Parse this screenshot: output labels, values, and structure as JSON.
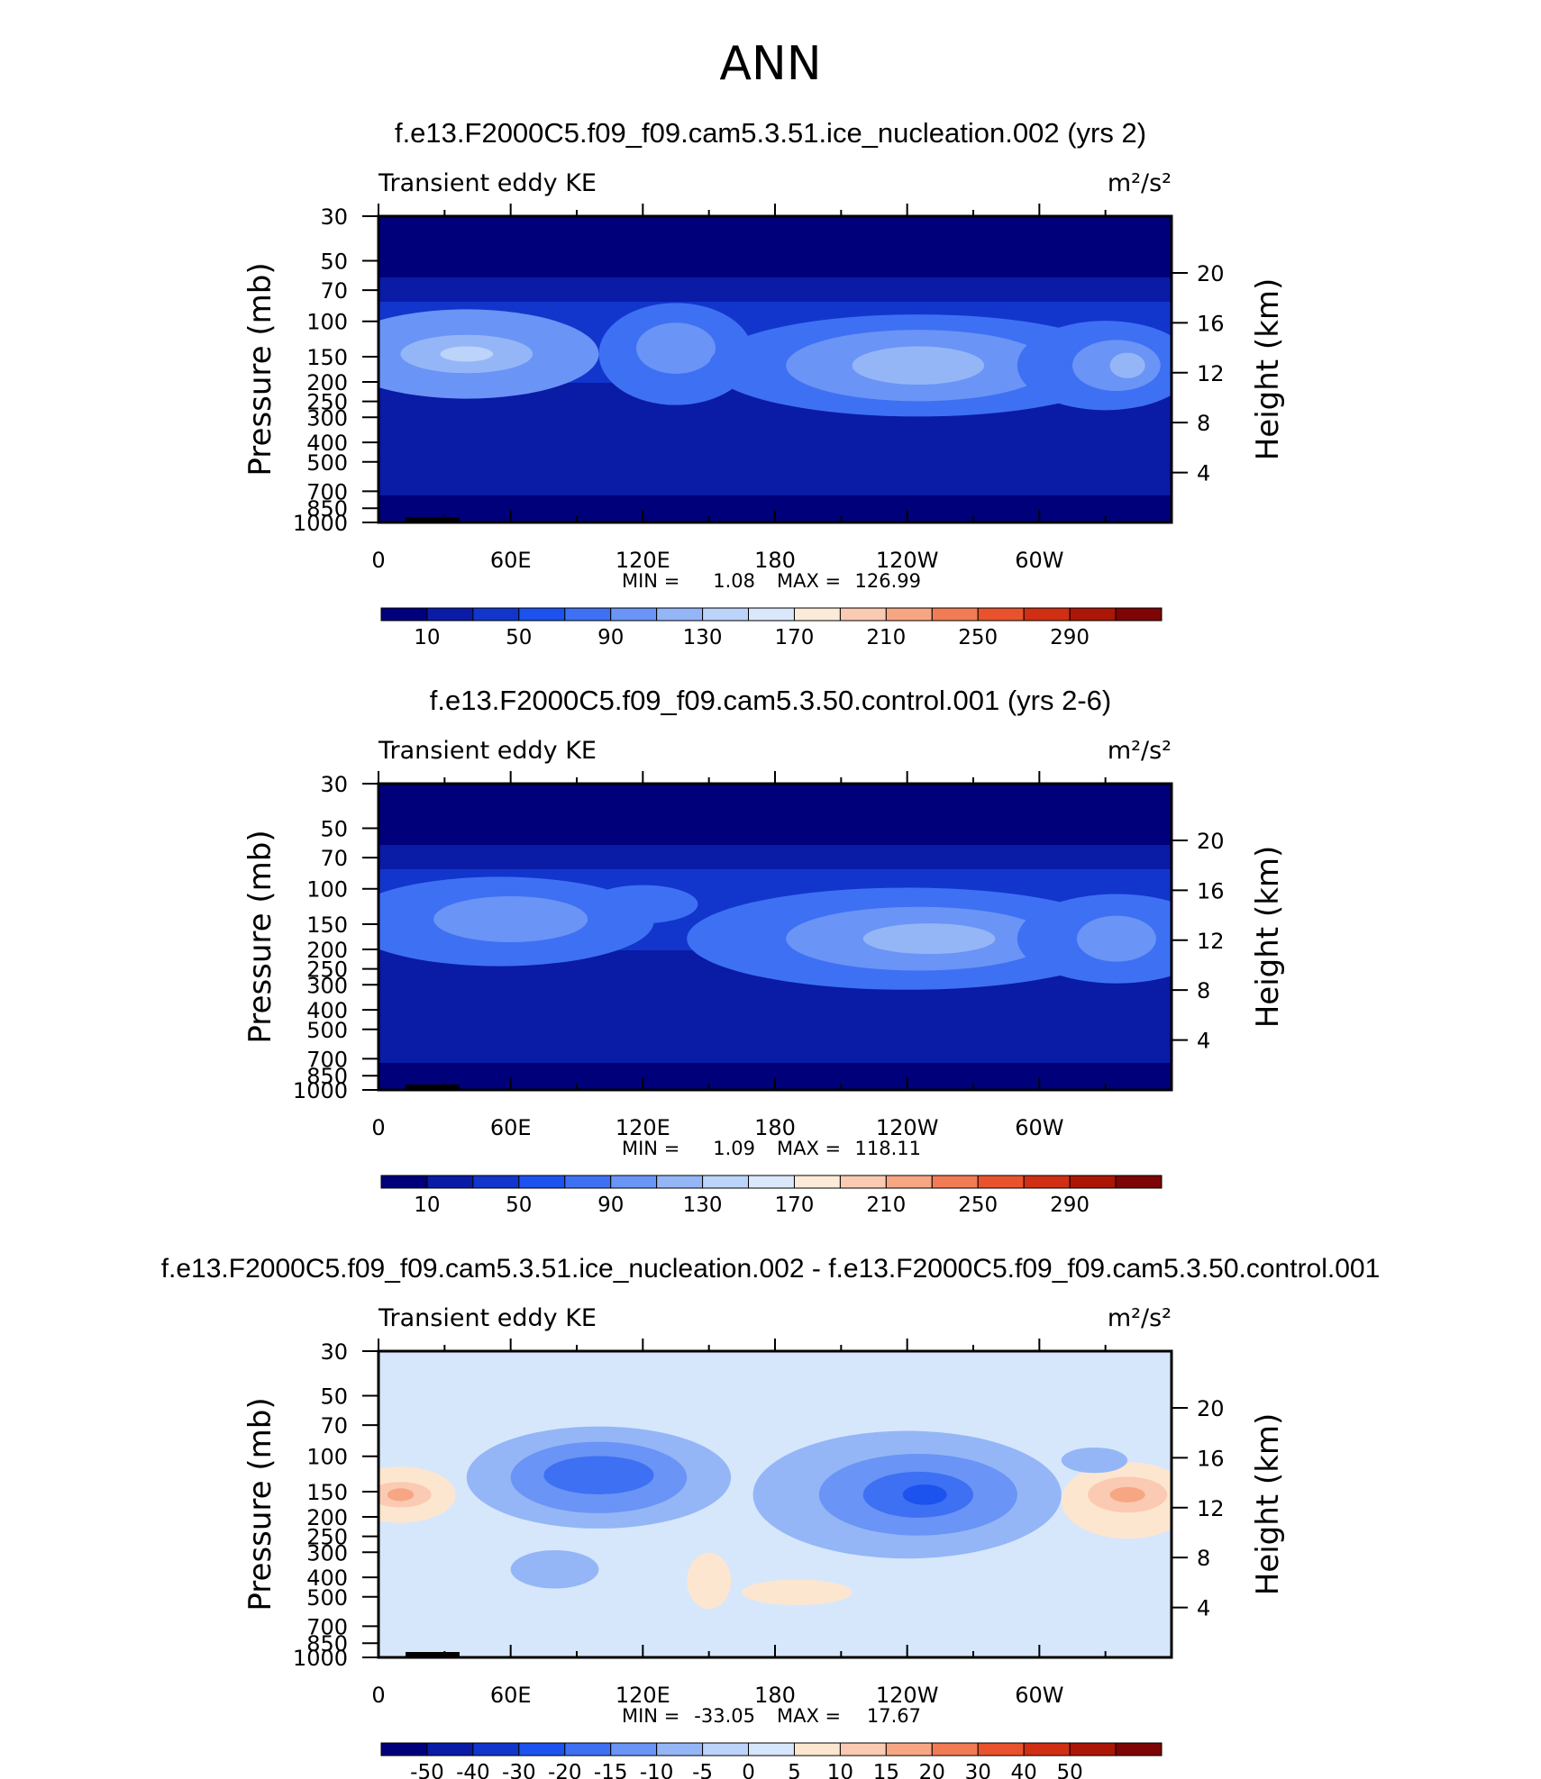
{
  "figure": {
    "title": "ANN"
  },
  "panels": [
    {
      "title": "f.e13.F2000C5.f09_f09.cam5.3.51.ice_nucleation.002 (yrs 2)",
      "left_label": "Transient eddy KE",
      "units": "m²/s²",
      "stats": {
        "min_label": "MIN =",
        "min": "1.08",
        "max_label": "MAX =",
        "max": "126.99"
      },
      "colorbar_labels": [
        "10",
        "50",
        "90",
        "130",
        "170",
        "210",
        "250",
        "290"
      ],
      "colors": [
        "#00007a",
        "#0a1ba6",
        "#1236cc",
        "#1c52ee",
        "#3e70f4",
        "#6a94f5",
        "#94b6f7",
        "#bcd3fa",
        "#dbe8fc",
        "#fdebd9",
        "#fbcab2",
        "#f7a684",
        "#f17b55",
        "#e8532d",
        "#d02f13",
        "#ab1607",
        "#7d0505"
      ],
      "fields": [
        {
          "x": 40,
          "y": 120,
          "rx": 60,
          "ry": 35,
          "level": 5
        },
        {
          "x": 40,
          "y": 120,
          "rx": 30,
          "ry": 15,
          "level": 6
        },
        {
          "x": 40,
          "y": 120,
          "rx": 12,
          "ry": 6,
          "level": 7
        },
        {
          "x": 135,
          "y": 120,
          "rx": 35,
          "ry": 40,
          "level": 4
        },
        {
          "x": 135,
          "y": 115,
          "rx": 18,
          "ry": 20,
          "level": 5
        },
        {
          "x": 245,
          "y": 130,
          "rx": 95,
          "ry": 40,
          "level": 4
        },
        {
          "x": 245,
          "y": 130,
          "rx": 60,
          "ry": 28,
          "level": 5
        },
        {
          "x": 245,
          "y": 130,
          "rx": 30,
          "ry": 15,
          "level": 6
        },
        {
          "x": 330,
          "y": 130,
          "rx": 40,
          "ry": 35,
          "level": 4
        },
        {
          "x": 335,
          "y": 130,
          "rx": 20,
          "ry": 20,
          "level": 5
        },
        {
          "x": 340,
          "y": 130,
          "rx": 8,
          "ry": 10,
          "level": 6
        }
      ],
      "axes": {
        "x_ticks": [
          "0",
          "60E",
          "120E",
          "180",
          "120W",
          "60W"
        ],
        "x_values": [
          0,
          60,
          120,
          180,
          240,
          300
        ],
        "y_ticks": [
          "30",
          "50",
          "70",
          "100",
          "150",
          "200",
          "250",
          "300",
          "400",
          "500",
          "700",
          "850",
          "1000"
        ],
        "y_values": [
          30,
          50,
          70,
          100,
          150,
          200,
          250,
          300,
          400,
          500,
          700,
          850,
          1000
        ],
        "y2_ticks": [
          "20",
          "16",
          "12",
          "8",
          "4"
        ],
        "y2_values": [
          20,
          16,
          12,
          8,
          4
        ],
        "y_label": "Pressure (mb)",
        "y2_label": "Height (km)"
      }
    },
    {
      "title": "f.e13.F2000C5.f09_f09.cam5.3.50.control.001 (yrs 2-6)",
      "left_label": "Transient eddy KE",
      "units": "m²/s²",
      "stats": {
        "min_label": "MIN =",
        "min": "1.09",
        "max_label": "MAX =",
        "max": "118.11"
      },
      "colorbar_labels": [
        "10",
        "50",
        "90",
        "130",
        "170",
        "210",
        "250",
        "290"
      ],
      "colors": [
        "#00007a",
        "#0a1ba6",
        "#1236cc",
        "#1c52ee",
        "#3e70f4",
        "#6a94f5",
        "#94b6f7",
        "#bcd3fa",
        "#dbe8fc",
        "#fdebd9",
        "#fbcab2",
        "#f7a684",
        "#f17b55",
        "#e8532d",
        "#d02f13",
        "#ab1607",
        "#7d0505"
      ],
      "fields": [
        {
          "x": 55,
          "y": 120,
          "rx": 70,
          "ry": 35,
          "level": 4
        },
        {
          "x": 60,
          "y": 118,
          "rx": 35,
          "ry": 18,
          "level": 5
        },
        {
          "x": 120,
          "y": 105,
          "rx": 25,
          "ry": 15,
          "level": 4
        },
        {
          "x": 240,
          "y": 135,
          "rx": 100,
          "ry": 40,
          "level": 4
        },
        {
          "x": 245,
          "y": 135,
          "rx": 60,
          "ry": 25,
          "level": 5
        },
        {
          "x": 250,
          "y": 135,
          "rx": 30,
          "ry": 12,
          "level": 6
        },
        {
          "x": 335,
          "y": 135,
          "rx": 45,
          "ry": 35,
          "level": 4
        },
        {
          "x": 335,
          "y": 135,
          "rx": 18,
          "ry": 18,
          "level": 5
        }
      ],
      "axes": {
        "x_ticks": [
          "0",
          "60E",
          "120E",
          "180",
          "120W",
          "60W"
        ],
        "x_values": [
          0,
          60,
          120,
          180,
          240,
          300
        ],
        "y_ticks": [
          "30",
          "50",
          "70",
          "100",
          "150",
          "200",
          "250",
          "300",
          "400",
          "500",
          "700",
          "850",
          "1000"
        ],
        "y_values": [
          30,
          50,
          70,
          100,
          150,
          200,
          250,
          300,
          400,
          500,
          700,
          850,
          1000
        ],
        "y2_ticks": [
          "20",
          "16",
          "12",
          "8",
          "4"
        ],
        "y2_values": [
          20,
          16,
          12,
          8,
          4
        ],
        "y_label": "Pressure (mb)",
        "y2_label": "Height (km)"
      }
    },
    {
      "title": "f.e13.F2000C5.f09_f09.cam5.3.51.ice_nucleation.002 - f.e13.F2000C5.f09_f09.cam5.3.50.control.001",
      "left_label": "Transient eddy KE",
      "units": "m²/s²",
      "stats": {
        "min_label": "MIN =",
        "min": "-33.05",
        "max_label": "MAX =",
        "max": "17.67"
      },
      "colorbar_labels": [
        "-50",
        "-40",
        "-30",
        "-20",
        "-15",
        "-10",
        "-5",
        "0",
        "5",
        "10",
        "15",
        "20",
        "30",
        "40",
        "50"
      ],
      "colors": [
        "#00007a",
        "#0a1ba6",
        "#1236cc",
        "#1c52ee",
        "#3e70f4",
        "#6a94f5",
        "#94b6f7",
        "#bcd3fa",
        "#d6e7fc",
        "#fde6cf",
        "#fbcab2",
        "#f7a684",
        "#f17b55",
        "#e8532d",
        "#d02f13",
        "#ab1607",
        "#7d0505"
      ],
      "fields": [
        {
          "x": 10,
          "y": 125,
          "rx": 25,
          "ry": 22,
          "level": 9
        },
        {
          "x": 10,
          "y": 125,
          "rx": 14,
          "ry": 10,
          "level": 10
        },
        {
          "x": 10,
          "y": 125,
          "rx": 6,
          "ry": 5,
          "level": 11
        },
        {
          "x": 100,
          "y": 110,
          "rx": 60,
          "ry": 40,
          "level": 6
        },
        {
          "x": 100,
          "y": 110,
          "rx": 40,
          "ry": 28,
          "level": 5
        },
        {
          "x": 100,
          "y": 108,
          "rx": 25,
          "ry": 15,
          "level": 4
        },
        {
          "x": 240,
          "y": 125,
          "rx": 70,
          "ry": 50,
          "level": 6
        },
        {
          "x": 245,
          "y": 125,
          "rx": 45,
          "ry": 32,
          "level": 5
        },
        {
          "x": 245,
          "y": 125,
          "rx": 25,
          "ry": 18,
          "level": 4
        },
        {
          "x": 248,
          "y": 125,
          "rx": 10,
          "ry": 8,
          "level": 3
        },
        {
          "x": 340,
          "y": 130,
          "rx": 30,
          "ry": 30,
          "level": 9
        },
        {
          "x": 340,
          "y": 125,
          "rx": 18,
          "ry": 14,
          "level": 10
        },
        {
          "x": 340,
          "y": 125,
          "rx": 8,
          "ry": 6,
          "level": 11
        },
        {
          "x": 325,
          "y": 95,
          "rx": 15,
          "ry": 10,
          "level": 6
        },
        {
          "x": 80,
          "y": 190,
          "rx": 20,
          "ry": 15,
          "level": 6
        },
        {
          "x": 150,
          "y": 200,
          "rx": 10,
          "ry": 22,
          "level": 9
        },
        {
          "x": 190,
          "y": 210,
          "rx": 25,
          "ry": 10,
          "level": 9
        }
      ],
      "axes": {
        "x_ticks": [
          "0",
          "60E",
          "120E",
          "180",
          "120W",
          "60W"
        ],
        "x_values": [
          0,
          60,
          120,
          180,
          240,
          300
        ],
        "y_ticks": [
          "30",
          "50",
          "70",
          "100",
          "150",
          "200",
          "250",
          "300",
          "400",
          "500",
          "700",
          "850",
          "1000"
        ],
        "y_values": [
          30,
          50,
          70,
          100,
          150,
          200,
          250,
          300,
          400,
          500,
          700,
          850,
          1000
        ],
        "y2_ticks": [
          "20",
          "16",
          "12",
          "8",
          "4"
        ],
        "y2_values": [
          20,
          16,
          12,
          8,
          4
        ],
        "y_label": "Pressure (mb)",
        "y2_label": "Height (km)"
      }
    }
  ],
  "chart_data": [
    {
      "type": "heatmap",
      "title": "f.e13.F2000C5.f09_f09.cam5.3.51.ice_nucleation.002 (yrs 2)",
      "subtitle": "Transient eddy KE",
      "units": "m²/s²",
      "xlabel": "",
      "ylabel": "Pressure (mb)",
      "y2label": "Height (km)",
      "xlim": [
        0,
        360
      ],
      "ylim": [
        1000,
        30
      ],
      "y_scale": "log",
      "min": 1.08,
      "max": 126.99,
      "levels": [
        10,
        50,
        90,
        130,
        170,
        210,
        250,
        290
      ]
    },
    {
      "type": "heatmap",
      "title": "f.e13.F2000C5.f09_f09.cam5.3.50.control.001 (yrs 2-6)",
      "subtitle": "Transient eddy KE",
      "units": "m²/s²",
      "xlabel": "",
      "ylabel": "Pressure (mb)",
      "y2label": "Height (km)",
      "xlim": [
        0,
        360
      ],
      "ylim": [
        1000,
        30
      ],
      "y_scale": "log",
      "min": 1.09,
      "max": 118.11,
      "levels": [
        10,
        50,
        90,
        130,
        170,
        210,
        250,
        290
      ]
    },
    {
      "type": "heatmap",
      "title": "f.e13.F2000C5.f09_f09.cam5.3.51.ice_nucleation.002 - f.e13.F2000C5.f09_f09.cam5.3.50.control.001",
      "subtitle": "Transient eddy KE",
      "units": "m²/s²",
      "xlabel": "",
      "ylabel": "Pressure (mb)",
      "y2label": "Height (km)",
      "xlim": [
        0,
        360
      ],
      "ylim": [
        1000,
        30
      ],
      "y_scale": "log",
      "min": -33.05,
      "max": 17.67,
      "levels": [
        -50,
        -40,
        -30,
        -20,
        -15,
        -10,
        -5,
        0,
        5,
        10,
        15,
        20,
        30,
        40,
        50
      ]
    }
  ]
}
